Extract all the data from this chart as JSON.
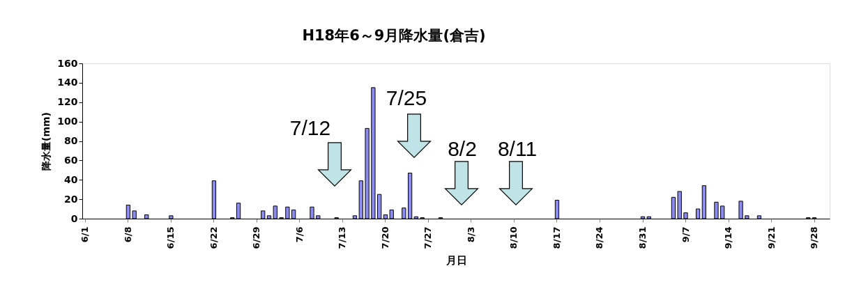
{
  "chart_data": {
    "type": "bar",
    "title": "H18年6～9月降水量(倉吉)",
    "xlabel": "月日",
    "ylabel": "降水量(mm)",
    "categories": [
      "6/1",
      null,
      null,
      null,
      null,
      null,
      null,
      "6/8",
      null,
      null,
      null,
      null,
      null,
      null,
      "6/15",
      null,
      null,
      null,
      null,
      null,
      null,
      "6/22",
      null,
      null,
      null,
      null,
      null,
      null,
      "6/29",
      null,
      null,
      null,
      null,
      null,
      null,
      "7/6",
      null,
      null,
      null,
      null,
      null,
      null,
      "7/13",
      null,
      null,
      null,
      null,
      null,
      null,
      "7/20",
      null,
      null,
      null,
      null,
      null,
      null,
      "7/27",
      null,
      null,
      null,
      null,
      null,
      null,
      "8/3",
      null,
      null,
      null,
      null,
      null,
      null,
      "8/10",
      null,
      null,
      null,
      null,
      null,
      null,
      "8/17",
      null,
      null,
      null,
      null,
      null,
      null,
      "8/24",
      null,
      null,
      null,
      null,
      null,
      null,
      "8/31",
      null,
      null,
      null,
      null,
      null,
      null,
      "9/7",
      null,
      null,
      null,
      null,
      null,
      null,
      "9/14",
      null,
      null,
      null,
      null,
      null,
      null,
      "9/21",
      null,
      null,
      null,
      null,
      null,
      null,
      "9/28",
      null,
      null
    ],
    "values": [
      null,
      null,
      null,
      null,
      null,
      null,
      null,
      14,
      8,
      null,
      4,
      null,
      null,
      null,
      3,
      null,
      null,
      null,
      null,
      null,
      null,
      39,
      null,
      null,
      1,
      16,
      null,
      null,
      null,
      8,
      3,
      13,
      1,
      12,
      9,
      null,
      null,
      12,
      3,
      null,
      null,
      1,
      null,
      null,
      3,
      39,
      93,
      135,
      25,
      4,
      9,
      null,
      11,
      47,
      2,
      1,
      null,
      null,
      1,
      null,
      null,
      null,
      null,
      null,
      null,
      null,
      null,
      null,
      null,
      null,
      null,
      null,
      null,
      null,
      null,
      null,
      null,
      19,
      null,
      null,
      null,
      null,
      null,
      null,
      null,
      null,
      null,
      null,
      null,
      null,
      null,
      2,
      2,
      null,
      null,
      null,
      22,
      28,
      6,
      null,
      10,
      34,
      null,
      17,
      13,
      null,
      null,
      18,
      3,
      null,
      3,
      null,
      null,
      null,
      null,
      null,
      null,
      null,
      1,
      1,
      null,
      null
    ],
    "color": "#8c8cf0",
    "ylim": [
      0,
      160
    ],
    "yticks": [
      0,
      20,
      40,
      60,
      80,
      100,
      120,
      140,
      160
    ],
    "grid": false,
    "annotations": [
      "7/12",
      "7/25",
      "8/2",
      "8/11"
    ]
  }
}
